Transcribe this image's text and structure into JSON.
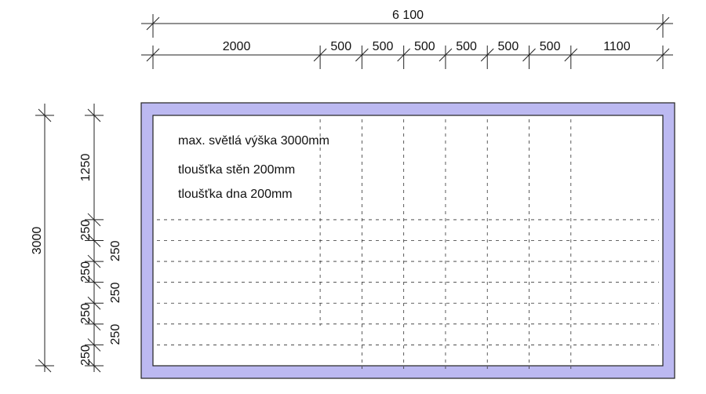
{
  "dimensions": {
    "top_total": "6 100",
    "top_segments": [
      "2000",
      "500",
      "500",
      "500",
      "500",
      "500",
      "500",
      "1100"
    ],
    "left_total": "3000",
    "left_segments": [
      "1250",
      "250",
      "250",
      "250",
      "250",
      "250",
      "250",
      "250"
    ]
  },
  "notes": [
    "max. světlá výška 3000mm",
    "tloušťka stěn 200mm",
    "tloušťka dna 200mm"
  ]
}
